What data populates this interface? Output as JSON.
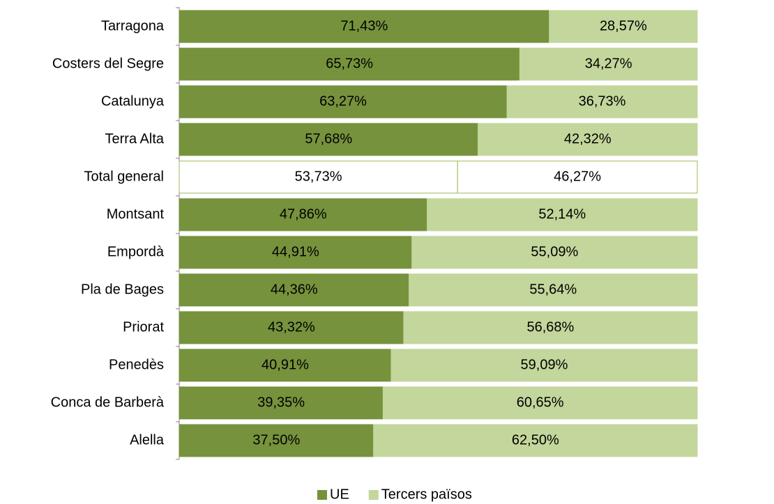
{
  "chart_data": {
    "type": "bar",
    "orientation": "horizontal",
    "stacked": true,
    "categories": [
      "Tarragona",
      "Costers del Segre",
      "Catalunya",
      "Terra Alta",
      "Total general",
      "Montsant",
      "Empordà",
      "Pla de Bages",
      "Priorat",
      "Penedès",
      "Conca de Barberà",
      "Alella"
    ],
    "xlim": [
      0,
      100
    ],
    "legend": "bottom",
    "series": [
      {
        "name": "UE",
        "color": "#76923c",
        "colors": [
          "#76923c",
          "#76923c",
          "#76923c",
          "#76923c",
          "#ffffff",
          "#76923c",
          "#76923c",
          "#76923c",
          "#76923c",
          "#76923c",
          "#76923c",
          "#76923c"
        ],
        "edgecolors": [
          "#76923c",
          "#76923c",
          "#76923c",
          "#76923c",
          "#9bbb59",
          "#76923c",
          "#76923c",
          "#76923c",
          "#76923c",
          "#76923c",
          "#76923c",
          "#76923c"
        ],
        "values": [
          71.43,
          65.73,
          63.27,
          57.68,
          53.73,
          47.86,
          44.91,
          44.36,
          43.32,
          40.91,
          39.35,
          37.5
        ],
        "value_labels": [
          "71,43%",
          "65,73%",
          "63,27%",
          "57,68%",
          "53,73%",
          "47,86%",
          "44,91%",
          "44,36%",
          "43,32%",
          "40,91%",
          "39,35%",
          "37,50%"
        ]
      },
      {
        "name": "Tercers països",
        "color": "#c3d69b",
        "colors": [
          "#c3d69b",
          "#c3d69b",
          "#c3d69b",
          "#c3d69b",
          "#ffffff",
          "#c3d69b",
          "#c3d69b",
          "#c3d69b",
          "#c3d69b",
          "#c3d69b",
          "#c3d69b",
          "#c3d69b"
        ],
        "edgecolors": [
          "#c3d69b",
          "#c3d69b",
          "#c3d69b",
          "#c3d69b",
          "#9bbb59",
          "#c3d69b",
          "#c3d69b",
          "#c3d69b",
          "#c3d69b",
          "#c3d69b",
          "#c3d69b",
          "#c3d69b"
        ],
        "values": [
          28.57,
          34.27,
          36.73,
          42.32,
          46.27,
          52.14,
          55.09,
          55.64,
          56.68,
          59.09,
          60.65,
          62.5
        ],
        "value_labels": [
          "28,57%",
          "34,27%",
          "36,73%",
          "42,32%",
          "46,27%",
          "52,14%",
          "55,09%",
          "55,64%",
          "56,68%",
          "59,09%",
          "60,65%",
          "62,50%"
        ]
      }
    ]
  }
}
